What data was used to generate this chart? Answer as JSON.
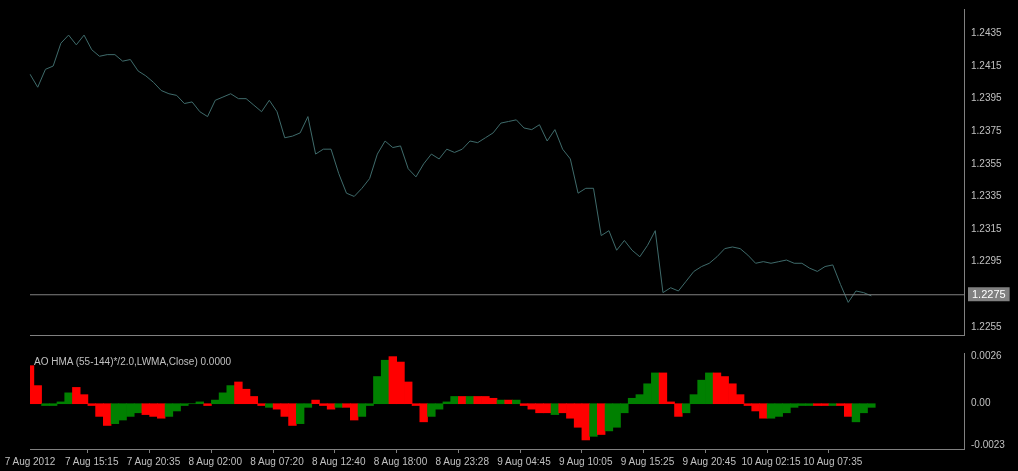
{
  "chart_data": [
    {
      "type": "line",
      "tick_labels": "y",
      "categories": [
        null,
        null,
        null,
        null,
        null,
        null,
        null,
        null,
        null,
        null,
        null,
        null,
        null,
        null,
        null,
        null,
        null,
        null,
        null,
        null,
        null,
        null,
        null,
        null,
        null,
        null,
        null,
        null,
        null,
        null,
        null,
        null,
        null,
        null,
        null,
        null,
        null,
        null,
        null,
        null,
        null,
        null,
        null,
        null,
        null,
        null,
        null,
        null,
        null,
        null,
        null,
        null,
        null,
        null,
        null,
        null,
        null,
        null,
        null,
        null,
        null,
        null,
        null,
        null,
        null,
        null,
        null,
        null,
        null,
        null,
        null,
        null,
        null,
        null,
        null,
        null,
        null,
        null,
        null,
        null,
        null,
        null,
        null,
        null,
        null,
        null,
        null,
        null,
        null,
        null,
        null,
        null,
        null,
        null,
        null,
        null,
        null,
        null,
        null,
        null,
        null,
        null,
        null,
        null,
        null,
        null,
        null,
        null,
        null,
        null,
        null,
        null,
        null,
        null,
        null,
        null,
        null,
        null,
        null,
        null,
        null,
        null
      ],
      "series": [
        {
          "color": "#3f6b6b",
          "values": [
            1.241,
            1.2402,
            1.2413,
            1.2415,
            1.2429,
            1.2434,
            1.2428,
            1.2434,
            1.2425,
            1.2421,
            1.2422,
            1.2422,
            1.2418,
            1.2419,
            1.2412,
            1.2409,
            1.2405,
            1.24,
            1.2398,
            1.2397,
            1.2392,
            1.2393,
            1.2387,
            1.2384,
            1.2394,
            1.2396,
            1.2398,
            1.2395,
            1.2395,
            1.2391,
            1.2387,
            1.2394,
            1.2387,
            1.2371,
            1.2372,
            1.2374,
            1.2384,
            1.2361,
            1.2364,
            1.2364,
            1.2349,
            1.2337,
            1.2335,
            1.234,
            1.2346,
            1.2361,
            1.2369,
            1.2365,
            1.2366,
            1.2352,
            1.2347,
            1.2355,
            1.2361,
            1.2358,
            1.2364,
            1.2362,
            1.2364,
            1.2369,
            1.2368,
            1.2371,
            1.2374,
            1.238,
            1.2381,
            1.2382,
            1.2377,
            1.2376,
            1.2379,
            1.2369,
            1.2376,
            1.2364,
            1.2358,
            1.2337,
            1.234,
            1.234,
            1.2311,
            1.2314,
            1.2302,
            1.2308,
            1.2302,
            1.2298,
            1.2305,
            1.2314,
            1.2276,
            1.2279,
            1.2277,
            1.2283,
            1.2289,
            1.2292,
            1.2294,
            1.2298,
            1.2303,
            1.2304,
            1.2303,
            1.2299,
            1.2294,
            1.2295,
            1.2294,
            1.2295,
            1.2296,
            1.2294,
            1.2294,
            1.2291,
            1.2289,
            1.2292,
            1.2293,
            1.2281,
            1.227,
            1.2277,
            1.2276,
            1.2274,
            null,
            null,
            null,
            null,
            null,
            null,
            null,
            null,
            null,
            null,
            null,
            null
          ]
        }
      ],
      "ylim": [
        1.225,
        1.245
      ],
      "yticks": [
        1.2255,
        1.2275,
        1.2295,
        1.2315,
        1.2335,
        1.2355,
        1.2375,
        1.2395,
        1.2415,
        1.2435
      ],
      "ref_lines": [
        {
          "axis": "y",
          "value": 1.2275,
          "label": "1.2275",
          "color": "#808080"
        }
      ]
    },
    {
      "type": "bar",
      "title": "AO HMA (55-144)*/2.0,LWMA,Close) 0.0000",
      "categories": [
        "7 Aug 2012",
        null,
        null,
        null,
        null,
        null,
        null,
        null,
        "7 Aug 15:15",
        null,
        null,
        null,
        null,
        null,
        null,
        null,
        "7 Aug 20:35",
        null,
        null,
        null,
        null,
        null,
        null,
        null,
        "8 Aug 02:00",
        null,
        null,
        null,
        null,
        null,
        null,
        null,
        "8 Aug 07:20",
        null,
        null,
        null,
        null,
        null,
        null,
        null,
        "8 Aug 12:40",
        null,
        null,
        null,
        null,
        null,
        null,
        null,
        "8 Aug 18:00",
        null,
        null,
        null,
        null,
        null,
        null,
        null,
        "8 Aug 23:28",
        null,
        null,
        null,
        null,
        null,
        null,
        null,
        "9 Aug 04:45",
        null,
        null,
        null,
        null,
        null,
        null,
        null,
        "9 Aug 10:05",
        null,
        null,
        null,
        null,
        null,
        null,
        null,
        "9 Aug 15:25",
        null,
        null,
        null,
        null,
        null,
        null,
        null,
        "9 Aug 20:45",
        null,
        null,
        null,
        null,
        null,
        null,
        null,
        "10 Aug 02:15",
        null,
        null,
        null,
        null,
        null,
        null,
        null,
        "10 Aug 07:35",
        null,
        null,
        null,
        null,
        null,
        null,
        null,
        null,
        null,
        null,
        null,
        null,
        null,
        null,
        null,
        null,
        null
      ],
      "values": [
        0.0021,
        0.001,
        -0.0001,
        -0.0001,
        0.0001,
        0.0006,
        0.0009,
        0.0005,
        -0.0001,
        -0.0007,
        -0.0012,
        -0.0011,
        -0.0009,
        -0.0007,
        -0.0005,
        -0.0006,
        -0.0007,
        -0.0008,
        -0.0007,
        -0.0004,
        -0.0001,
        0.0,
        0.0001,
        -0.0001,
        0.0002,
        0.0006,
        0.001,
        0.0012,
        0.0008,
        0.0004,
        -0.0001,
        -0.0002,
        -0.0003,
        -0.0007,
        -0.0012,
        -0.0011,
        -0.0002,
        0.0002,
        -0.0001,
        -0.0003,
        -0.0002,
        -0.0002,
        -0.0009,
        -0.0007,
        -0.0001,
        0.0015,
        0.0024,
        0.0026,
        0.0023,
        0.0012,
        -0.0001,
        -0.001,
        -0.0007,
        -0.0003,
        0.0001,
        0.0004,
        0.0004,
        0.0004,
        0.0004,
        0.0004,
        0.0003,
        0.0002,
        0.0002,
        0.0002,
        -0.0001,
        -0.0003,
        -0.0005,
        -0.0005,
        -0.0006,
        -0.0005,
        -0.0008,
        -0.0013,
        -0.002,
        -0.0018,
        -0.0017,
        -0.0015,
        -0.0013,
        -0.0005,
        0.0003,
        0.0005,
        0.0011,
        0.0017,
        0.0017,
        0.0001,
        -0.0007,
        -0.0005,
        0.0005,
        0.0013,
        0.0017,
        0.0017,
        0.0015,
        0.0011,
        0.0005,
        -0.0001,
        -0.0004,
        -0.0008,
        -0.0008,
        -0.0007,
        -0.0005,
        -0.0002,
        -0.0001,
        -0.0001,
        -0.0001,
        -0.0001,
        -0.0001,
        -0.0001,
        -0.0007,
        -0.001,
        -0.0005,
        -0.0002,
        null,
        null,
        null,
        null,
        null,
        null,
        null,
        null,
        null,
        null,
        null,
        null
      ],
      "colors": [
        "#ff0000",
        "#ff0000",
        "#008000",
        "#008000",
        "#008000",
        "#008000",
        "#ff0000",
        "#ff0000",
        "#ff0000",
        "#ff0000",
        "#ff0000",
        "#008000",
        "#008000",
        "#008000",
        "#008000",
        "#ff0000",
        "#ff0000",
        "#ff0000",
        "#008000",
        "#008000",
        "#008000",
        "#008000",
        "#008000",
        "#ff0000",
        "#008000",
        "#008000",
        "#008000",
        "#ff0000",
        "#ff0000",
        "#ff0000",
        "#ff0000",
        "#008000",
        "#ff0000",
        "#ff0000",
        "#ff0000",
        "#008000",
        "#008000",
        "#ff0000",
        "#ff0000",
        "#ff0000",
        "#008000",
        "#ff0000",
        "#ff0000",
        "#008000",
        "#008000",
        "#008000",
        "#008000",
        "#ff0000",
        "#ff0000",
        "#ff0000",
        "#ff0000",
        "#ff0000",
        "#008000",
        "#008000",
        "#008000",
        "#008000",
        "#ff0000",
        "#008000",
        "#ff0000",
        "#ff0000",
        "#ff0000",
        "#008000",
        "#ff0000",
        "#008000",
        "#ff0000",
        "#ff0000",
        "#ff0000",
        "#ff0000",
        "#008000",
        "#ff0000",
        "#ff0000",
        "#ff0000",
        "#ff0000",
        "#008000",
        "#ff0000",
        "#008000",
        "#008000",
        "#008000",
        "#008000",
        "#008000",
        "#008000",
        "#008000",
        "#ff0000",
        "#ff0000",
        "#ff0000",
        "#008000",
        "#008000",
        "#008000",
        "#008000",
        "#ff0000",
        "#ff0000",
        "#ff0000",
        "#ff0000",
        "#ff0000",
        "#ff0000",
        "#ff0000",
        "#008000",
        "#008000",
        "#008000",
        "#008000",
        "#008000",
        "#008000",
        "#ff0000",
        "#ff0000",
        "#008000",
        "#ff0000",
        "#ff0000",
        "#008000",
        "#008000",
        "#008000",
        "#000000",
        "#000000",
        "#000000",
        "#000000",
        "#000000",
        "#000000",
        "#000000",
        "#000000",
        "#000000",
        "#000000",
        "#000000",
        "#000000"
      ],
      "ylim": [
        -0.0025,
        0.0028
      ],
      "yticks": [
        0.0026,
        {
          "value": 0,
          "label": "0.00"
        },
        -0.0023
      ]
    }
  ]
}
